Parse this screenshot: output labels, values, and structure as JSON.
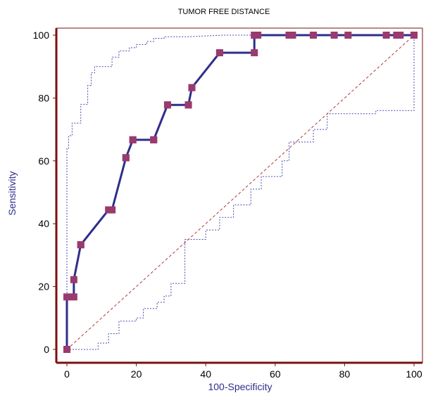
{
  "chart_data": {
    "type": "line",
    "title": "TUMOR FREE DISTANCE",
    "xlabel": "100-Specificity",
    "ylabel": "Sensitivity",
    "xlim": [
      0,
      100
    ],
    "ylim": [
      0,
      100
    ],
    "xticks": [
      0,
      20,
      40,
      60,
      80,
      100
    ],
    "yticks": [
      0,
      20,
      40,
      60,
      80,
      100
    ],
    "grid": false,
    "colors": {
      "roc": "#2e2e8a",
      "marker": "#9a3a6e",
      "ci": "#4a4ab0",
      "diagonal": "#b03a3a",
      "frame": "#7a1010"
    },
    "series": [
      {
        "style": "step-line-with-markers",
        "x": [
          0,
          0,
          2,
          2,
          4,
          4,
          12,
          13,
          13,
          17,
          17,
          19,
          19,
          25,
          25,
          29,
          29,
          35,
          35,
          36,
          36,
          44,
          44,
          54,
          54,
          55,
          64,
          65,
          71,
          77,
          81,
          92,
          95,
          96,
          100
        ],
        "y": [
          0,
          16.7,
          16.7,
          22.2,
          33.3,
          33.3,
          44.4,
          44.4,
          44.4,
          61,
          61,
          66.7,
          66.7,
          66.7,
          66.7,
          77.8,
          77.8,
          77.8,
          77.8,
          83.3,
          83.3,
          94.4,
          94.4,
          94.4,
          100,
          100,
          100,
          100,
          100,
          100,
          100,
          100,
          100,
          100,
          100
        ]
      },
      {
        "style": "dotted-upper-ci",
        "x": [
          0,
          0,
          0.5,
          0.5,
          1.5,
          1.5,
          4,
          4,
          6,
          6,
          7,
          7,
          8,
          8,
          13,
          13,
          15,
          15,
          18,
          18,
          20,
          20,
          23,
          23,
          25,
          25,
          28,
          28,
          35,
          45,
          100
        ],
        "y": [
          0,
          64,
          64,
          68,
          68,
          72,
          72,
          78,
          78,
          84,
          84,
          88,
          88,
          90,
          90,
          93,
          93,
          95,
          95,
          96,
          96,
          97,
          97,
          98,
          98,
          99,
          99,
          99.5,
          99.5,
          100,
          100
        ]
      },
      {
        "style": "dotted-lower-ci",
        "x": [
          0,
          9,
          9,
          12,
          12,
          15,
          15,
          20,
          20,
          22,
          22,
          26,
          26,
          28,
          28,
          30,
          30,
          34,
          34,
          40,
          40,
          44,
          44,
          48,
          48,
          53,
          53,
          56,
          56,
          62,
          62,
          64,
          64,
          71,
          71,
          75,
          75,
          89,
          89,
          100,
          100
        ],
        "y": [
          0,
          0,
          2,
          2,
          5,
          5,
          9,
          9,
          10,
          10,
          13,
          13,
          15,
          15,
          17,
          17,
          21,
          21,
          35,
          35,
          38,
          38,
          42,
          42,
          46,
          46,
          51,
          51,
          55,
          55,
          60,
          60,
          66,
          66,
          70,
          70,
          75,
          75,
          76,
          76,
          100
        ]
      },
      {
        "style": "diagonal-reference",
        "x": [
          0,
          100
        ],
        "y": [
          0,
          100
        ]
      }
    ]
  }
}
